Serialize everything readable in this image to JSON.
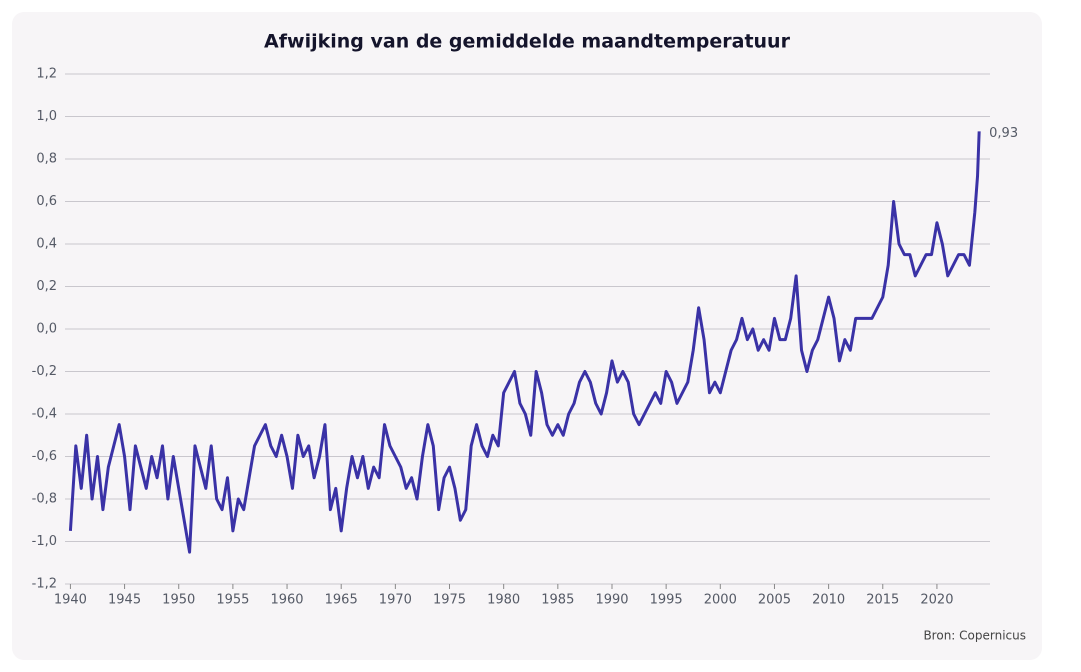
{
  "chart_data": {
    "type": "line",
    "title": "Afwijking van de gemiddelde maandtemperatuur",
    "source": "Bron: Copernicus",
    "annotation": "0,93",
    "color": "#3a32a6",
    "grid": true,
    "x": [
      1940,
      1940.5,
      1941,
      1941.5,
      1942,
      1942.5,
      1943,
      1943.5,
      1944,
      1944.5,
      1945,
      1945.5,
      1946,
      1946.5,
      1947,
      1947.5,
      1948,
      1948.5,
      1949,
      1949.5,
      1950,
      1950.5,
      1951,
      1951.5,
      1952,
      1952.5,
      1953,
      1953.5,
      1954,
      1954.5,
      1955,
      1955.5,
      1956,
      1956.5,
      1957,
      1957.5,
      1958,
      1958.5,
      1959,
      1959.5,
      1960,
      1960.5,
      1961,
      1961.5,
      1962,
      1962.5,
      1963,
      1963.5,
      1964,
      1964.5,
      1965,
      1965.5,
      1966,
      1966.5,
      1967,
      1967.5,
      1968,
      1968.5,
      1969,
      1969.5,
      1970,
      1970.5,
      1971,
      1971.5,
      1972,
      1972.5,
      1973,
      1973.5,
      1974,
      1974.5,
      1975,
      1975.5,
      1976,
      1976.5,
      1977,
      1977.5,
      1978,
      1978.5,
      1979,
      1979.5,
      1980,
      1980.5,
      1981,
      1981.5,
      1982,
      1982.5,
      1983,
      1983.5,
      1984,
      1984.5,
      1985,
      1985.5,
      1986,
      1986.5,
      1987,
      1987.5,
      1988,
      1988.5,
      1989,
      1989.5,
      1990,
      1990.5,
      1991,
      1991.5,
      1992,
      1992.5,
      1993,
      1993.5,
      1994,
      1994.5,
      1995,
      1995.5,
      1996,
      1996.5,
      1997,
      1997.5,
      1998,
      1998.5,
      1999,
      1999.5,
      2000,
      2000.5,
      2001,
      2001.5,
      2002,
      2002.5,
      2003,
      2003.5,
      2004,
      2004.5,
      2005,
      2005.5,
      2006,
      2006.5,
      2007,
      2007.5,
      2008,
      2008.5,
      2009,
      2009.5,
      2010,
      2010.5,
      2011,
      2011.5,
      2012,
      2012.5,
      2013,
      2013.5,
      2014,
      2014.5,
      2015,
      2015.5,
      2016,
      2016.5,
      2017,
      2017.5,
      2018,
      2018.5,
      2019,
      2019.5,
      2020,
      2020.5,
      2021,
      2021.5,
      2022,
      2022.5,
      2023,
      2023.5,
      2023.75,
      2023.9
    ],
    "values": [
      -0.95,
      -0.55,
      -0.75,
      -0.5,
      -0.8,
      -0.6,
      -0.85,
      -0.65,
      -0.55,
      -0.45,
      -0.6,
      -0.85,
      -0.55,
      -0.65,
      -0.75,
      -0.6,
      -0.7,
      -0.55,
      -0.8,
      -0.6,
      -0.75,
      -0.9,
      -1.05,
      -0.55,
      -0.65,
      -0.75,
      -0.55,
      -0.8,
      -0.85,
      -0.7,
      -0.95,
      -0.8,
      -0.85,
      -0.7,
      -0.55,
      -0.5,
      -0.45,
      -0.55,
      -0.6,
      -0.5,
      -0.6,
      -0.75,
      -0.5,
      -0.6,
      -0.55,
      -0.7,
      -0.6,
      -0.45,
      -0.85,
      -0.75,
      -0.95,
      -0.75,
      -0.6,
      -0.7,
      -0.6,
      -0.75,
      -0.65,
      -0.7,
      -0.45,
      -0.55,
      -0.6,
      -0.65,
      -0.75,
      -0.7,
      -0.8,
      -0.6,
      -0.45,
      -0.55,
      -0.85,
      -0.7,
      -0.65,
      -0.75,
      -0.9,
      -0.85,
      -0.55,
      -0.45,
      -0.55,
      -0.6,
      -0.5,
      -0.55,
      -0.3,
      -0.25,
      -0.2,
      -0.35,
      -0.4,
      -0.5,
      -0.2,
      -0.3,
      -0.45,
      -0.5,
      -0.45,
      -0.5,
      -0.4,
      -0.35,
      -0.25,
      -0.2,
      -0.25,
      -0.35,
      -0.4,
      -0.3,
      -0.15,
      -0.25,
      -0.2,
      -0.25,
      -0.4,
      -0.45,
      -0.4,
      -0.35,
      -0.3,
      -0.35,
      -0.2,
      -0.25,
      -0.35,
      -0.3,
      -0.25,
      -0.1,
      0.1,
      -0.05,
      -0.3,
      -0.25,
      -0.3,
      -0.2,
      -0.1,
      -0.05,
      0.05,
      -0.05,
      0,
      -0.1,
      -0.05,
      -0.1,
      0.05,
      -0.05,
      -0.05,
      0.05,
      0.25,
      -0.1,
      -0.2,
      -0.1,
      -0.05,
      0.05,
      0.15,
      0.05,
      -0.15,
      -0.05,
      -0.1,
      0.05,
      0.05,
      0.05,
      0.05,
      0.1,
      0.15,
      0.3,
      0.6,
      0.4,
      0.35,
      0.35,
      0.25,
      0.3,
      0.35,
      0.35,
      0.5,
      0.4,
      0.25,
      0.3,
      0.35,
      0.35,
      0.3,
      0.55,
      0.72,
      0.93
    ],
    "xlim": [
      1939.5,
      2024.9
    ],
    "xticks": [
      1940,
      1945,
      1950,
      1955,
      1960,
      1965,
      1970,
      1975,
      1980,
      1985,
      1990,
      1995,
      2000,
      2005,
      2010,
      2015,
      2020
    ],
    "ylim": [
      -1.2,
      1.2
    ],
    "yticks": [
      {
        "value": -1.2,
        "label": "-1,2"
      },
      {
        "value": -1.0,
        "label": "-1,0"
      },
      {
        "value": -0.8,
        "label": "-0,8"
      },
      {
        "value": -0.6,
        "label": "-0,6"
      },
      {
        "value": -0.4,
        "label": "-0,4"
      },
      {
        "value": -0.2,
        "label": "-0,2"
      },
      {
        "value": 0,
        "label": "0,0"
      },
      {
        "value": 0.2,
        "label": "0,2"
      },
      {
        "value": 0.4,
        "label": "0,4"
      },
      {
        "value": 0.6,
        "label": "0,6"
      },
      {
        "value": 0.8,
        "label": "0,8"
      },
      {
        "value": 1.0,
        "label": "1,0"
      },
      {
        "value": 1.2,
        "label": "1,2"
      }
    ]
  }
}
